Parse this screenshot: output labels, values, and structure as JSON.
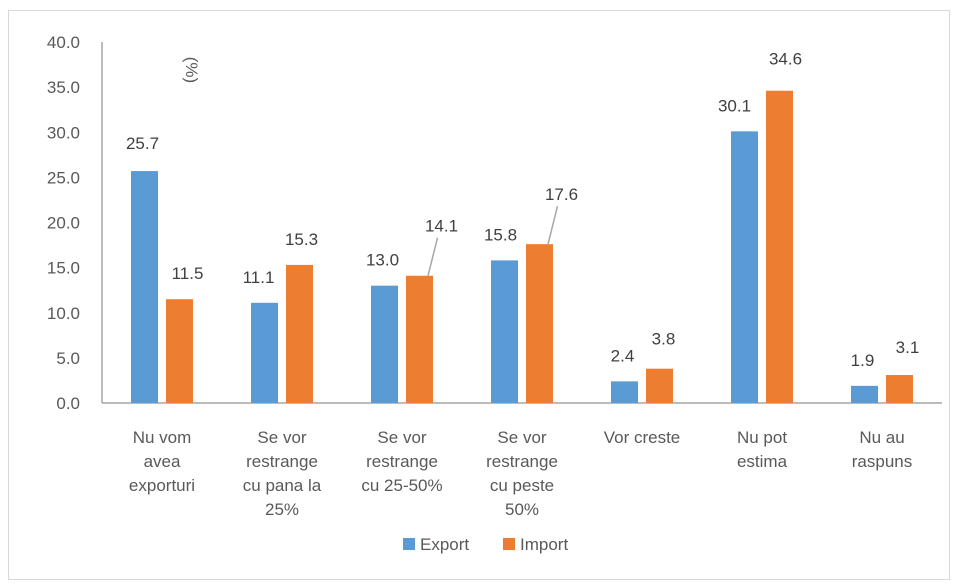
{
  "chart_data": {
    "type": "bar",
    "categories": [
      [
        "Nu vom",
        "avea",
        "exporturi"
      ],
      [
        "Se vor",
        "restrange",
        "cu pana la",
        "25%"
      ],
      [
        "Se vor",
        "restrange",
        "cu 25-50%"
      ],
      [
        "Se vor",
        "restrange",
        "cu peste",
        "50%"
      ],
      [
        "Vor creste"
      ],
      [
        "Nu pot",
        "estima"
      ],
      [
        "Nu au",
        "raspuns"
      ]
    ],
    "series": [
      {
        "name": "Export",
        "color": "#5b9bd5",
        "values": [
          25.7,
          11.1,
          13.0,
          15.8,
          2.4,
          30.1,
          1.9
        ]
      },
      {
        "name": "Import",
        "color": "#ed7d31",
        "values": [
          11.5,
          15.3,
          14.1,
          17.6,
          3.8,
          34.6,
          3.1
        ]
      }
    ],
    "unit_label": "(%)",
    "ylim": [
      0,
      40
    ],
    "yticks": [
      "0.0",
      "5.0",
      "10.0",
      "15.0",
      "20.0",
      "25.0",
      "30.0",
      "35.0",
      "40.0"
    ],
    "ytick_values": [
      0,
      5,
      10,
      15,
      20,
      25,
      30,
      35,
      40
    ],
    "grid": false,
    "legend_position": "bottom",
    "title": "",
    "xlabel": "",
    "ylabel": ""
  }
}
